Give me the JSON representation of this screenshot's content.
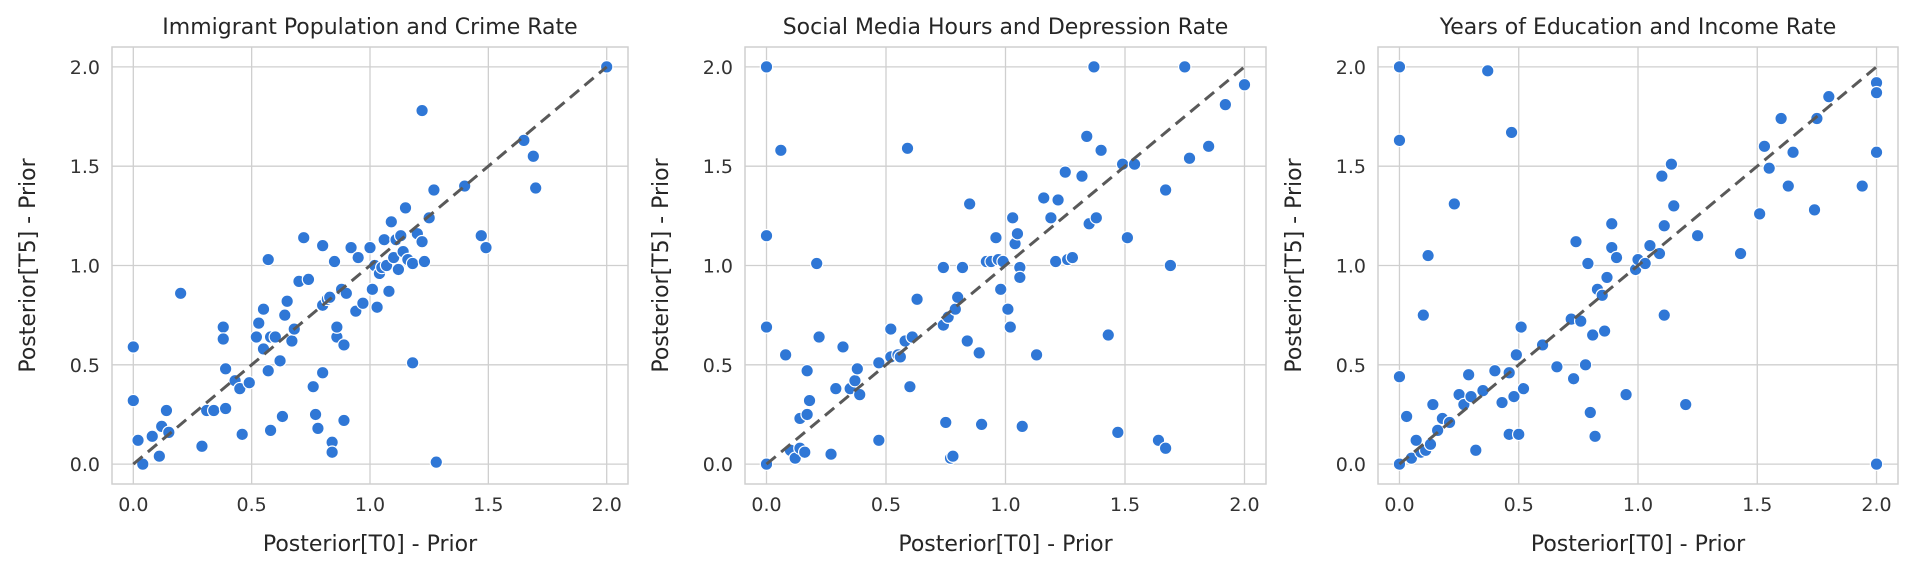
{
  "colors": {
    "points": "#2f77d6",
    "reference_line": "#595959",
    "grid": "#cfcfcf"
  },
  "chart_data": [
    {
      "type": "scatter",
      "title": "Immigrant Population and Crime Rate",
      "xlabel": "Posterior[T0] - Prior",
      "ylabel": "Posterior[T5] - Prior",
      "xlim": [
        -0.09,
        2.09
      ],
      "ylim": [
        -0.1,
        2.1
      ],
      "xticks": [
        "0.0",
        "0.5",
        "1.0",
        "1.5",
        "2.0"
      ],
      "yticks": [
        "0.0",
        "0.5",
        "1.0",
        "1.5",
        "2.0"
      ],
      "grid": true,
      "reference_line": [
        [
          0,
          0
        ],
        [
          2,
          2
        ]
      ],
      "points": [
        [
          0.0,
          0.59
        ],
        [
          0.0,
          0.32
        ],
        [
          0.02,
          0.12
        ],
        [
          0.04,
          0.0
        ],
        [
          0.08,
          0.14
        ],
        [
          0.11,
          0.04
        ],
        [
          0.12,
          0.19
        ],
        [
          0.14,
          0.27
        ],
        [
          0.15,
          0.16
        ],
        [
          0.2,
          0.86
        ],
        [
          0.29,
          0.09
        ],
        [
          0.31,
          0.27
        ],
        [
          0.34,
          0.27
        ],
        [
          0.38,
          0.69
        ],
        [
          0.38,
          0.63
        ],
        [
          0.39,
          0.48
        ],
        [
          0.39,
          0.28
        ],
        [
          0.43,
          0.42
        ],
        [
          0.45,
          0.38
        ],
        [
          0.46,
          0.15
        ],
        [
          0.49,
          0.41
        ],
        [
          0.52,
          0.64
        ],
        [
          0.53,
          0.71
        ],
        [
          0.55,
          0.58
        ],
        [
          0.55,
          0.78
        ],
        [
          0.57,
          1.03
        ],
        [
          0.57,
          0.47
        ],
        [
          0.58,
          0.64
        ],
        [
          0.58,
          0.17
        ],
        [
          0.6,
          0.64
        ],
        [
          0.62,
          0.52
        ],
        [
          0.63,
          0.24
        ],
        [
          0.64,
          0.75
        ],
        [
          0.65,
          0.82
        ],
        [
          0.67,
          0.62
        ],
        [
          0.68,
          0.68
        ],
        [
          0.7,
          0.92
        ],
        [
          0.72,
          1.14
        ],
        [
          0.74,
          0.93
        ],
        [
          0.76,
          0.39
        ],
        [
          0.77,
          0.25
        ],
        [
          0.78,
          0.18
        ],
        [
          0.8,
          1.1
        ],
        [
          0.8,
          0.46
        ],
        [
          0.8,
          0.8
        ],
        [
          0.82,
          0.83
        ],
        [
          0.83,
          0.84
        ],
        [
          0.84,
          0.11
        ],
        [
          0.84,
          0.06
        ],
        [
          0.85,
          1.02
        ],
        [
          0.86,
          0.64
        ],
        [
          0.86,
          0.69
        ],
        [
          0.88,
          0.88
        ],
        [
          0.89,
          0.22
        ],
        [
          0.89,
          0.6
        ],
        [
          0.9,
          0.86
        ],
        [
          0.92,
          1.09
        ],
        [
          0.94,
          0.77
        ],
        [
          0.95,
          1.04
        ],
        [
          0.97,
          0.81
        ],
        [
          1.0,
          1.09
        ],
        [
          1.01,
          0.88
        ],
        [
          1.02,
          1.0
        ],
        [
          1.03,
          0.79
        ],
        [
          1.04,
          0.96
        ],
        [
          1.05,
          0.99
        ],
        [
          1.06,
          1.13
        ],
        [
          1.07,
          1.0
        ],
        [
          1.08,
          0.87
        ],
        [
          1.09,
          1.22
        ],
        [
          1.1,
          1.04
        ],
        [
          1.11,
          1.13
        ],
        [
          1.12,
          0.98
        ],
        [
          1.13,
          1.15
        ],
        [
          1.14,
          1.07
        ],
        [
          1.15,
          1.29
        ],
        [
          1.16,
          1.03
        ],
        [
          1.18,
          1.01
        ],
        [
          1.18,
          0.51
        ],
        [
          1.2,
          1.16
        ],
        [
          1.22,
          1.78
        ],
        [
          1.22,
          1.12
        ],
        [
          1.23,
          1.02
        ],
        [
          1.25,
          1.24
        ],
        [
          1.27,
          1.38
        ],
        [
          1.28,
          0.01
        ],
        [
          1.4,
          1.4
        ],
        [
          1.47,
          1.15
        ],
        [
          1.49,
          1.09
        ],
        [
          1.65,
          1.63
        ],
        [
          1.69,
          1.55
        ],
        [
          1.7,
          1.39
        ],
        [
          2.0,
          2.0
        ]
      ]
    },
    {
      "type": "scatter",
      "title": "Social Media Hours and Depression Rate",
      "xlabel": "Posterior[T0] - Prior",
      "ylabel": "Posterior[T5] - Prior",
      "xlim": [
        -0.09,
        2.09
      ],
      "ylim": [
        -0.1,
        2.1
      ],
      "xticks": [
        "0.0",
        "0.5",
        "1.0",
        "1.5",
        "2.0"
      ],
      "yticks": [
        "0.0",
        "0.5",
        "1.0",
        "1.5",
        "2.0"
      ],
      "grid": true,
      "reference_line": [
        [
          0,
          0
        ],
        [
          2,
          2
        ]
      ],
      "points": [
        [
          0.0,
          2.0
        ],
        [
          0.0,
          1.15
        ],
        [
          0.0,
          0.69
        ],
        [
          0.0,
          0.0
        ],
        [
          0.06,
          1.58
        ],
        [
          0.08,
          0.55
        ],
        [
          0.1,
          0.07
        ],
        [
          0.12,
          0.03
        ],
        [
          0.14,
          0.08
        ],
        [
          0.14,
          0.23
        ],
        [
          0.16,
          0.06
        ],
        [
          0.17,
          0.47
        ],
        [
          0.17,
          0.25
        ],
        [
          0.18,
          0.32
        ],
        [
          0.21,
          1.01
        ],
        [
          0.22,
          0.64
        ],
        [
          0.27,
          0.05
        ],
        [
          0.29,
          0.38
        ],
        [
          0.32,
          0.59
        ],
        [
          0.35,
          0.38
        ],
        [
          0.37,
          0.42
        ],
        [
          0.38,
          0.48
        ],
        [
          0.39,
          0.35
        ],
        [
          0.47,
          0.51
        ],
        [
          0.47,
          0.12
        ],
        [
          0.52,
          0.54
        ],
        [
          0.52,
          0.68
        ],
        [
          0.55,
          0.55
        ],
        [
          0.56,
          0.54
        ],
        [
          0.58,
          0.62
        ],
        [
          0.59,
          1.59
        ],
        [
          0.6,
          0.39
        ],
        [
          0.61,
          0.64
        ],
        [
          0.63,
          0.83
        ],
        [
          0.74,
          0.99
        ],
        [
          0.74,
          0.7
        ],
        [
          0.75,
          0.21
        ],
        [
          0.76,
          0.74
        ],
        [
          0.77,
          0.03
        ],
        [
          0.78,
          0.04
        ],
        [
          0.79,
          0.78
        ],
        [
          0.8,
          0.84
        ],
        [
          0.82,
          0.99
        ],
        [
          0.84,
          0.62
        ],
        [
          0.85,
          1.31
        ],
        [
          0.89,
          0.56
        ],
        [
          0.9,
          0.2
        ],
        [
          0.92,
          1.02
        ],
        [
          0.94,
          1.02
        ],
        [
          0.96,
          1.14
        ],
        [
          0.97,
          1.03
        ],
        [
          0.98,
          0.88
        ],
        [
          0.99,
          1.02
        ],
        [
          1.01,
          0.78
        ],
        [
          1.02,
          0.69
        ],
        [
          1.03,
          1.24
        ],
        [
          1.04,
          1.11
        ],
        [
          1.05,
          1.16
        ],
        [
          1.06,
          0.99
        ],
        [
          1.06,
          0.94
        ],
        [
          1.07,
          0.19
        ],
        [
          1.13,
          0.55
        ],
        [
          1.16,
          1.34
        ],
        [
          1.19,
          1.24
        ],
        [
          1.21,
          1.02
        ],
        [
          1.22,
          1.33
        ],
        [
          1.25,
          1.47
        ],
        [
          1.26,
          1.03
        ],
        [
          1.28,
          1.04
        ],
        [
          1.32,
          1.45
        ],
        [
          1.34,
          1.65
        ],
        [
          1.35,
          1.21
        ],
        [
          1.37,
          2.0
        ],
        [
          1.38,
          1.24
        ],
        [
          1.4,
          1.58
        ],
        [
          1.43,
          0.65
        ],
        [
          1.47,
          0.16
        ],
        [
          1.49,
          1.51
        ],
        [
          1.51,
          1.14
        ],
        [
          1.54,
          1.51
        ],
        [
          1.64,
          0.12
        ],
        [
          1.67,
          0.08
        ],
        [
          1.67,
          1.38
        ],
        [
          1.69,
          1.0
        ],
        [
          1.75,
          2.0
        ],
        [
          1.77,
          1.54
        ],
        [
          1.85,
          1.6
        ],
        [
          1.92,
          1.81
        ],
        [
          2.0,
          1.91
        ]
      ]
    },
    {
      "type": "scatter",
      "title": "Years of Education and Income Rate",
      "xlabel": "Posterior[T0] - Prior",
      "ylabel": "Posterior[T5] - Prior",
      "xlim": [
        -0.09,
        2.09
      ],
      "ylim": [
        -0.1,
        2.1
      ],
      "xticks": [
        "0.0",
        "0.5",
        "1.0",
        "1.5",
        "2.0"
      ],
      "yticks": [
        "0.0",
        "0.5",
        "1.0",
        "1.5",
        "2.0"
      ],
      "grid": true,
      "reference_line": [
        [
          0,
          0
        ],
        [
          2,
          2
        ]
      ],
      "points": [
        [
          0.0,
          2.0
        ],
        [
          0.0,
          1.63
        ],
        [
          0.0,
          0.44
        ],
        [
          0.0,
          0.0
        ],
        [
          0.03,
          0.24
        ],
        [
          0.05,
          0.03
        ],
        [
          0.07,
          0.12
        ],
        [
          0.09,
          0.06
        ],
        [
          0.1,
          0.75
        ],
        [
          0.11,
          0.07
        ],
        [
          0.12,
          1.05
        ],
        [
          0.13,
          0.1
        ],
        [
          0.14,
          0.3
        ],
        [
          0.16,
          0.17
        ],
        [
          0.18,
          0.23
        ],
        [
          0.21,
          0.21
        ],
        [
          0.23,
          1.31
        ],
        [
          0.25,
          0.35
        ],
        [
          0.27,
          0.3
        ],
        [
          0.29,
          0.45
        ],
        [
          0.3,
          0.34
        ],
        [
          0.32,
          0.07
        ],
        [
          0.35,
          0.37
        ],
        [
          0.37,
          1.98
        ],
        [
          0.4,
          0.47
        ],
        [
          0.43,
          0.31
        ],
        [
          0.46,
          0.15
        ],
        [
          0.46,
          0.46
        ],
        [
          0.47,
          1.67
        ],
        [
          0.48,
          0.34
        ],
        [
          0.49,
          0.55
        ],
        [
          0.5,
          0.15
        ],
        [
          0.51,
          0.69
        ],
        [
          0.52,
          0.38
        ],
        [
          0.6,
          0.6
        ],
        [
          0.66,
          0.49
        ],
        [
          0.72,
          0.73
        ],
        [
          0.73,
          0.43
        ],
        [
          0.74,
          1.12
        ],
        [
          0.76,
          0.72
        ],
        [
          0.78,
          0.5
        ],
        [
          0.79,
          1.01
        ],
        [
          0.8,
          0.26
        ],
        [
          0.81,
          0.65
        ],
        [
          0.82,
          0.14
        ],
        [
          0.83,
          0.88
        ],
        [
          0.85,
          0.85
        ],
        [
          0.86,
          0.67
        ],
        [
          0.87,
          0.94
        ],
        [
          0.89,
          1.21
        ],
        [
          0.89,
          1.09
        ],
        [
          0.91,
          1.04
        ],
        [
          0.95,
          0.35
        ],
        [
          0.99,
          0.98
        ],
        [
          1.0,
          1.03
        ],
        [
          1.03,
          1.01
        ],
        [
          1.05,
          1.1
        ],
        [
          1.09,
          1.06
        ],
        [
          1.1,
          1.45
        ],
        [
          1.11,
          1.2
        ],
        [
          1.11,
          0.75
        ],
        [
          1.14,
          1.51
        ],
        [
          1.15,
          1.3
        ],
        [
          1.2,
          0.3
        ],
        [
          1.25,
          1.15
        ],
        [
          1.43,
          1.06
        ],
        [
          1.51,
          1.26
        ],
        [
          1.53,
          1.6
        ],
        [
          1.55,
          1.49
        ],
        [
          1.6,
          1.74
        ],
        [
          1.63,
          1.4
        ],
        [
          1.65,
          1.57
        ],
        [
          1.74,
          1.28
        ],
        [
          1.75,
          1.74
        ],
        [
          1.8,
          1.85
        ],
        [
          1.94,
          1.4
        ],
        [
          2.0,
          1.92
        ],
        [
          2.0,
          1.87
        ],
        [
          2.0,
          1.57
        ],
        [
          2.0,
          0.0
        ]
      ]
    }
  ]
}
